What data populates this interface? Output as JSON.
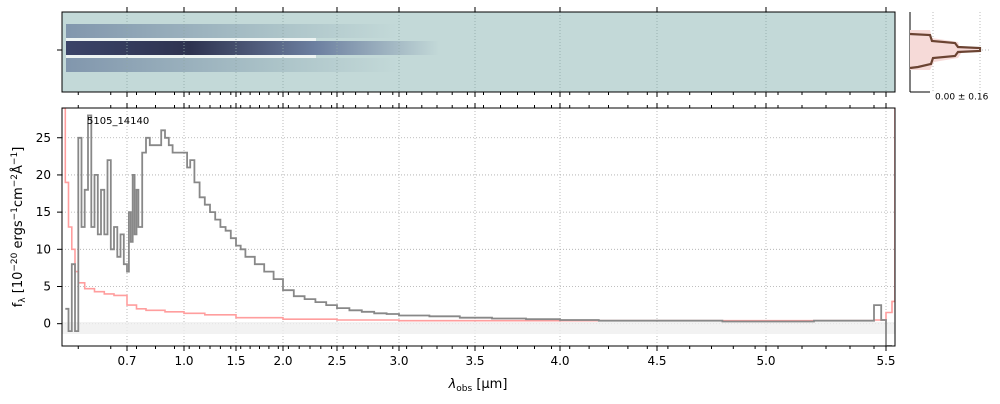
{
  "chart_data": {
    "type": "line",
    "annotation": "5105_14140",
    "ylabel": "f_λ [10^−20 ergs^−1cm^−2Å^−1]",
    "ylabel_parts": {
      "pre": "f",
      "sub": "λ",
      "mid": " [10",
      "sup1": "−20",
      "mid2": " ergs",
      "sup2": "−1",
      "mid3": "cm",
      "sup3": "−2",
      "mid4": "Å",
      "sup4": "−1",
      "post": "]"
    },
    "xlabel_parts": {
      "pre": "λ",
      "sub": "obs",
      "post": " [μm]"
    },
    "x_ticks": [
      "0.7",
      "1.0",
      "1.5",
      "2.0",
      "2.5",
      "3.0",
      "3.5",
      "4.0",
      "4.5",
      "5.0",
      "5.5"
    ],
    "x_tick_values": [
      0.7,
      1.0,
      1.5,
      2.0,
      2.5,
      3.0,
      3.5,
      4.0,
      4.5,
      5.0,
      5.5
    ],
    "y_ticks": [
      "0",
      "5",
      "10",
      "15",
      "20",
      "25"
    ],
    "y_tick_values": [
      0,
      5,
      10,
      15,
      20,
      25
    ],
    "ylim": [
      -3,
      29
    ],
    "xlim": [
      0.5,
      5.53
    ],
    "x_scale": "piecewise-nonlinear",
    "grid": true,
    "series": [
      {
        "color": "#888888",
        "x": [
          0.51,
          0.52,
          0.53,
          0.54,
          0.55,
          0.56,
          0.57,
          0.58,
          0.59,
          0.6,
          0.61,
          0.62,
          0.63,
          0.64,
          0.65,
          0.66,
          0.67,
          0.68,
          0.69,
          0.7,
          0.71,
          0.72,
          0.73,
          0.74,
          0.75,
          0.76,
          0.78,
          0.8,
          0.82,
          0.84,
          0.86,
          0.88,
          0.9,
          0.92,
          0.94,
          0.96,
          0.98,
          1.0,
          1.03,
          1.06,
          1.1,
          1.15,
          1.2,
          1.25,
          1.3,
          1.35,
          1.4,
          1.45,
          1.5,
          1.55,
          1.6,
          1.7,
          1.8,
          1.9,
          2.0,
          2.1,
          2.2,
          2.3,
          2.4,
          2.5,
          2.6,
          2.7,
          2.8,
          2.9,
          3.0,
          3.2,
          3.4,
          3.6,
          3.8,
          4.0,
          4.2,
          4.4,
          4.6,
          4.8,
          5.0,
          5.2,
          5.35,
          5.45,
          5.48,
          5.5,
          5.52
        ],
        "y": [
          2,
          -1,
          8,
          -1,
          25,
          13,
          18,
          28,
          13,
          20,
          12,
          18,
          12,
          22,
          10,
          13,
          9,
          12,
          8,
          7,
          15,
          11,
          20,
          12,
          18,
          13,
          23,
          25,
          24,
          24,
          24,
          26,
          25,
          24,
          23,
          23,
          23,
          23,
          21,
          22,
          19,
          17,
          16,
          15,
          14,
          13,
          12.5,
          11.5,
          10.5,
          10,
          9,
          8,
          7,
          6,
          4.5,
          3.7,
          3.3,
          2.9,
          2.5,
          2.1,
          1.8,
          1.6,
          1.4,
          1.3,
          1.1,
          1.0,
          0.8,
          0.7,
          0.6,
          0.5,
          0.4,
          0.4,
          0.4,
          0.3,
          0.3,
          0.4,
          0.4,
          2.5,
          0.5,
          -3,
          -3
        ]
      },
      {
        "color": "#ff9e9e",
        "x": [
          0.5,
          0.51,
          0.52,
          0.53,
          0.54,
          0.55,
          0.57,
          0.6,
          0.63,
          0.66,
          0.7,
          0.75,
          0.8,
          0.9,
          1.0,
          1.2,
          1.5,
          2.0,
          2.5,
          3.0,
          3.5,
          4.0,
          4.5,
          5.0,
          5.3,
          5.45,
          5.5,
          5.52,
          5.53
        ],
        "y": [
          29,
          19,
          13,
          10,
          7,
          5.5,
          4.7,
          4.3,
          4.0,
          3.8,
          2.5,
          2.0,
          1.8,
          1.6,
          1.4,
          1.2,
          0.8,
          0.6,
          0.5,
          0.4,
          0.4,
          0.4,
          0.4,
          0.4,
          0.4,
          0.5,
          1.5,
          3,
          29
        ]
      }
    ]
  },
  "inset": {
    "label": "0.00 ± 0.16"
  },
  "colors": {
    "spectrum2d_bg": "#c3d9d8",
    "spectrum2d_dark": "#2e3350",
    "profile": "#6b4332",
    "profile_fill": "#f6dad8",
    "error_line": "#ff9e9e",
    "flux_line": "#888888"
  }
}
